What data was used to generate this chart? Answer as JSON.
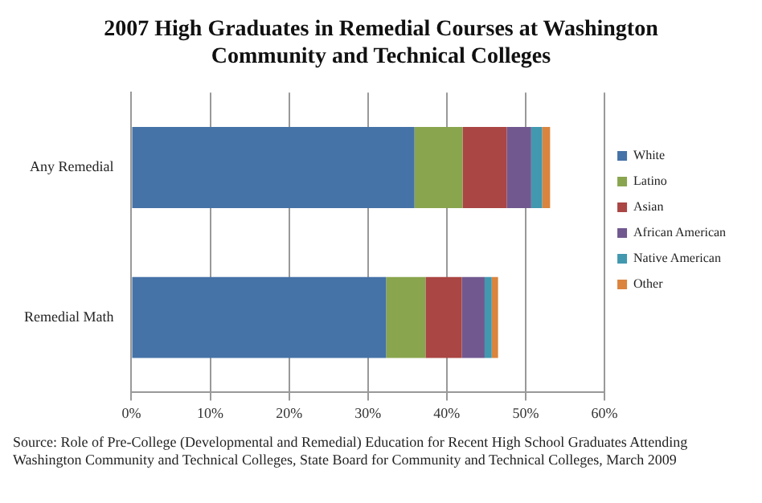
{
  "chart_data": {
    "type": "bar",
    "title": "2007 High Graduates in Remedial Courses at Washington Community and Technical Colleges",
    "orientation": "horizontal",
    "stacked": true,
    "categories": [
      "Any Remedial",
      "Remedial Math"
    ],
    "series": [
      {
        "name": "White",
        "color": "#4572a7",
        "values": [
          35.9,
          32.3
        ]
      },
      {
        "name": "Latino",
        "color": "#89a54e",
        "values": [
          6.1,
          5.0
        ]
      },
      {
        "name": "Asian",
        "color": "#aa4643",
        "values": [
          5.6,
          4.6
        ]
      },
      {
        "name": "African American",
        "color": "#71588f",
        "values": [
          3.1,
          2.9
        ]
      },
      {
        "name": "Native American",
        "color": "#4198af",
        "values": [
          1.4,
          0.9
        ]
      },
      {
        "name": "Other",
        "color": "#db843d",
        "values": [
          1.0,
          0.8
        ]
      }
    ],
    "xlim": [
      0,
      60
    ],
    "xticks": [
      {
        "value": 0,
        "label": "0%"
      },
      {
        "value": 10,
        "label": "10%"
      },
      {
        "value": 20,
        "label": "20%"
      },
      {
        "value": 30,
        "label": "30%"
      },
      {
        "value": 40,
        "label": "40%"
      },
      {
        "value": 50,
        "label": "50%"
      },
      {
        "value": 60,
        "label": "60%"
      }
    ],
    "grid": "x",
    "legend": "right",
    "annotations": [
      "Source: Role of Pre-College (Developmental and Remedial) Education for Recent High School Graduates Attending Washington Community and Technical Colleges, State Board for Community and Technical Colleges, March 2009"
    ]
  }
}
